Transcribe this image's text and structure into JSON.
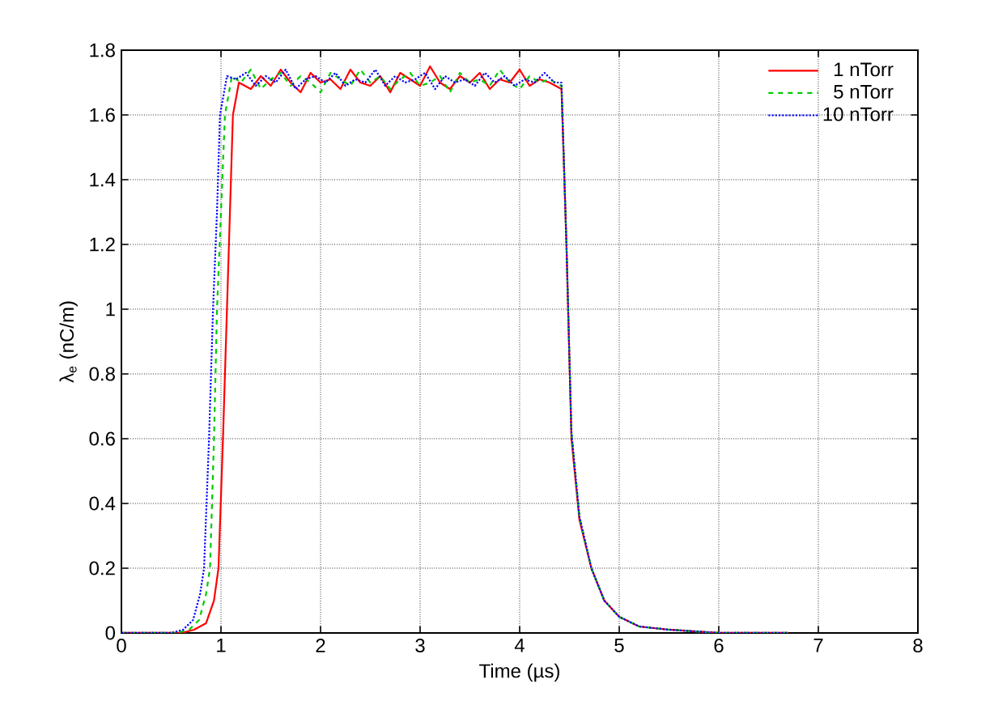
{
  "chart_data": {
    "type": "line",
    "xlabel": "Time (µs)",
    "ylabel": "λ$_{e}$ (nC/m)",
    "xlim": [
      0,
      8
    ],
    "ylim": [
      0,
      1.8
    ],
    "xticks": [
      0,
      1,
      2,
      3,
      4,
      5,
      6,
      7,
      8
    ],
    "yticks": [
      0,
      0.2,
      0.4,
      0.6,
      0.8,
      1,
      1.2,
      1.4,
      1.6,
      1.8
    ],
    "grid": true,
    "legend": "top right",
    "marker": "none",
    "series": [
      {
        "name": "1 nTorr",
        "color": "#ff0000",
        "line_style": "solid",
        "x": [
          0,
          0.6,
          0.73,
          0.85,
          0.93,
          0.975,
          1.02,
          1.06,
          1.09,
          1.12,
          1.18,
          1.3,
          1.4,
          1.5,
          1.6,
          1.7,
          1.8,
          1.9,
          2.0,
          2.1,
          2.2,
          2.3,
          2.4,
          2.5,
          2.6,
          2.7,
          2.8,
          2.9,
          3.0,
          3.1,
          3.2,
          3.3,
          3.4,
          3.5,
          3.6,
          3.7,
          3.8,
          3.9,
          4.0,
          4.1,
          4.2,
          4.3,
          4.42,
          4.47,
          4.52,
          4.6,
          4.72,
          4.85,
          5.0,
          5.2,
          5.5,
          6.0,
          6.7
        ],
        "values": [
          0,
          0,
          0.01,
          0.03,
          0.1,
          0.2,
          0.6,
          1.0,
          1.3,
          1.6,
          1.7,
          1.68,
          1.72,
          1.69,
          1.74,
          1.7,
          1.67,
          1.73,
          1.7,
          1.71,
          1.68,
          1.74,
          1.7,
          1.69,
          1.72,
          1.67,
          1.73,
          1.71,
          1.69,
          1.75,
          1.7,
          1.68,
          1.72,
          1.7,
          1.73,
          1.68,
          1.71,
          1.7,
          1.74,
          1.69,
          1.71,
          1.7,
          1.68,
          1.2,
          0.6,
          0.35,
          0.2,
          0.1,
          0.05,
          0.02,
          0.01,
          0,
          0
        ]
      },
      {
        "name": "5 nTorr",
        "color": "#00cc00",
        "line_style": "dashed",
        "x": [
          0,
          0.55,
          0.68,
          0.78,
          0.85,
          0.89,
          0.93,
          0.96,
          1.0,
          1.04,
          1.11,
          1.2,
          1.3,
          1.4,
          1.5,
          1.6,
          1.7,
          1.8,
          1.9,
          2.0,
          2.1,
          2.2,
          2.3,
          2.4,
          2.5,
          2.6,
          2.7,
          2.8,
          2.9,
          3.0,
          3.1,
          3.2,
          3.3,
          3.4,
          3.5,
          3.6,
          3.7,
          3.8,
          3.9,
          4.0,
          4.1,
          4.2,
          4.3,
          4.42,
          4.47,
          4.52,
          4.6,
          4.72,
          4.85,
          5.0,
          5.2,
          5.5,
          6.0,
          6.7
        ],
        "values": [
          0,
          0,
          0.01,
          0.04,
          0.12,
          0.2,
          0.6,
          1.0,
          1.3,
          1.6,
          1.72,
          1.7,
          1.74,
          1.68,
          1.71,
          1.73,
          1.69,
          1.72,
          1.7,
          1.67,
          1.73,
          1.71,
          1.69,
          1.74,
          1.7,
          1.72,
          1.68,
          1.71,
          1.73,
          1.69,
          1.7,
          1.72,
          1.67,
          1.73,
          1.7,
          1.71,
          1.69,
          1.74,
          1.7,
          1.68,
          1.72,
          1.7,
          1.71,
          1.69,
          1.2,
          0.62,
          0.36,
          0.2,
          0.1,
          0.05,
          0.02,
          0.01,
          0,
          0
        ]
      },
      {
        "name": "10 nTorr",
        "color": "#0000ff",
        "line_style": "dotted",
        "x": [
          0,
          0.5,
          0.62,
          0.72,
          0.79,
          0.83,
          0.88,
          0.92,
          0.96,
          0.99,
          1.06,
          1.15,
          1.25,
          1.35,
          1.45,
          1.55,
          1.65,
          1.75,
          1.85,
          1.95,
          2.05,
          2.15,
          2.25,
          2.35,
          2.45,
          2.55,
          2.65,
          2.75,
          2.85,
          2.95,
          3.05,
          3.15,
          3.25,
          3.35,
          3.45,
          3.55,
          3.65,
          3.75,
          3.85,
          3.95,
          4.05,
          4.15,
          4.25,
          4.35,
          4.42,
          4.47,
          4.52,
          4.6,
          4.72,
          4.85,
          5.0,
          5.2,
          5.5,
          6.0,
          6.7
        ],
        "values": [
          0,
          0,
          0.01,
          0.04,
          0.12,
          0.2,
          0.6,
          1.0,
          1.3,
          1.6,
          1.72,
          1.71,
          1.73,
          1.69,
          1.72,
          1.7,
          1.74,
          1.68,
          1.71,
          1.72,
          1.7,
          1.73,
          1.69,
          1.71,
          1.7,
          1.74,
          1.69,
          1.72,
          1.7,
          1.71,
          1.73,
          1.68,
          1.72,
          1.7,
          1.71,
          1.69,
          1.73,
          1.7,
          1.72,
          1.69,
          1.71,
          1.7,
          1.73,
          1.7,
          1.7,
          1.2,
          0.62,
          0.36,
          0.2,
          0.1,
          0.05,
          0.02,
          0.01,
          0,
          0
        ]
      }
    ]
  }
}
